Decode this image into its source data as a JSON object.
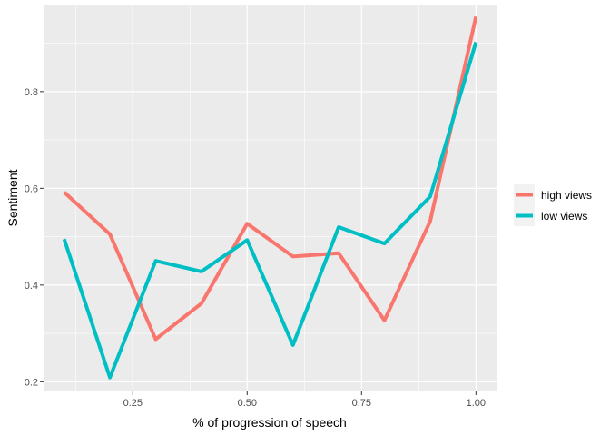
{
  "chart_data": {
    "type": "line",
    "title": "",
    "xlabel": "% of progression of speech",
    "ylabel": "Sentiment",
    "x": [
      0.1,
      0.2,
      0.3,
      0.4,
      0.5,
      0.6,
      0.7,
      0.8,
      0.9,
      1.0
    ],
    "xlim": [
      0.055,
      1.045
    ],
    "ylim": [
      0.18,
      0.98
    ],
    "x_ticks": [
      0.25,
      0.5,
      0.75,
      1.0
    ],
    "x_tick_labels": [
      "0.25",
      "0.50",
      "0.75",
      "1.00"
    ],
    "y_ticks": [
      0.2,
      0.4,
      0.6,
      0.8
    ],
    "y_tick_labels": [
      "0.2",
      "0.4",
      "0.6",
      "0.8"
    ],
    "grid": true,
    "legend_position": "right",
    "series": [
      {
        "name": "high views",
        "color": "#F8766D",
        "values": [
          0.592,
          0.505,
          0.288,
          0.362,
          0.527,
          0.459,
          0.466,
          0.327,
          0.532,
          0.955
        ]
      },
      {
        "name": "low views",
        "color": "#00BFC4",
        "values": [
          0.495,
          0.209,
          0.45,
          0.428,
          0.493,
          0.276,
          0.52,
          0.486,
          0.583,
          0.902
        ]
      }
    ]
  }
}
